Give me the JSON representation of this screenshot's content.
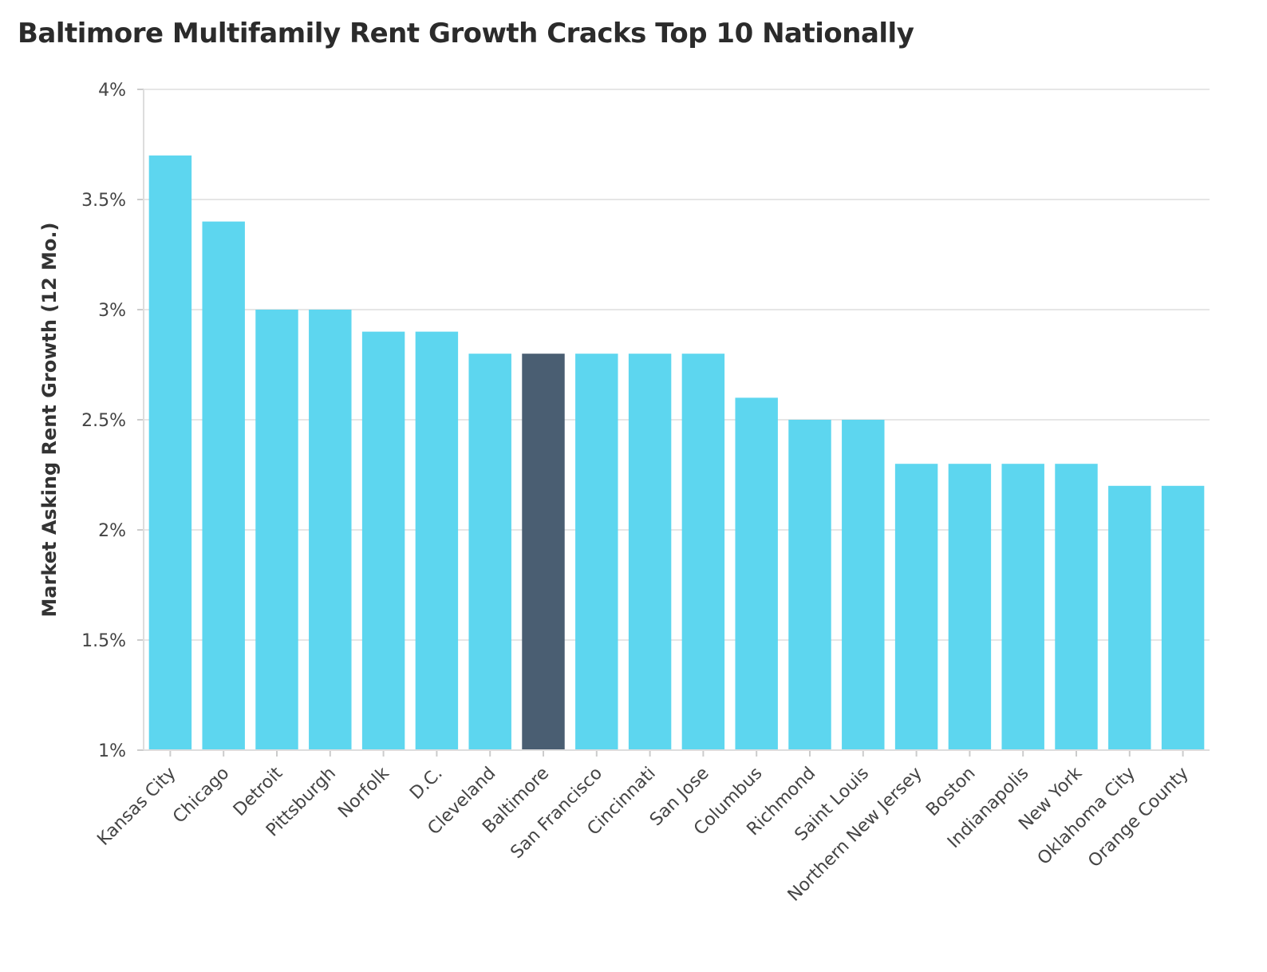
{
  "chart_data": {
    "type": "bar",
    "title": "Baltimore Multifamily Rent Growth Cracks Top 10 Nationally",
    "xlabel": "",
    "ylabel": "Market Asking Rent Growth (12 Mo.)",
    "ylim": [
      1,
      4
    ],
    "yticks": [
      1,
      1.5,
      2,
      2.5,
      3,
      3.5,
      4
    ],
    "ytick_labels": [
      "1%",
      "1.5%",
      "2%",
      "2.5%",
      "3%",
      "3.5%",
      "4%"
    ],
    "grid": true,
    "categories": [
      "Kansas City",
      "Chicago",
      "Detroit",
      "Pittsburgh",
      "Norfolk",
      "D.C.",
      "Cleveland",
      "Baltimore",
      "San Francisco",
      "Cincinnati",
      "San Jose",
      "Columbus",
      "Richmond",
      "Saint Louis",
      "Northern New Jersey",
      "Boston",
      "Indianapolis",
      "New York",
      "Oklahoma City",
      "Orange County"
    ],
    "values": [
      3.7,
      3.4,
      3.0,
      3.0,
      2.9,
      2.9,
      2.8,
      2.8,
      2.8,
      2.8,
      2.8,
      2.6,
      2.5,
      2.5,
      2.3,
      2.3,
      2.3,
      2.3,
      2.2,
      2.2
    ],
    "highlight_category": "Baltimore",
    "colors": {
      "bar": "#5dd6ef",
      "highlight": "#4a5e72",
      "grid": "#e6e6e6"
    }
  }
}
